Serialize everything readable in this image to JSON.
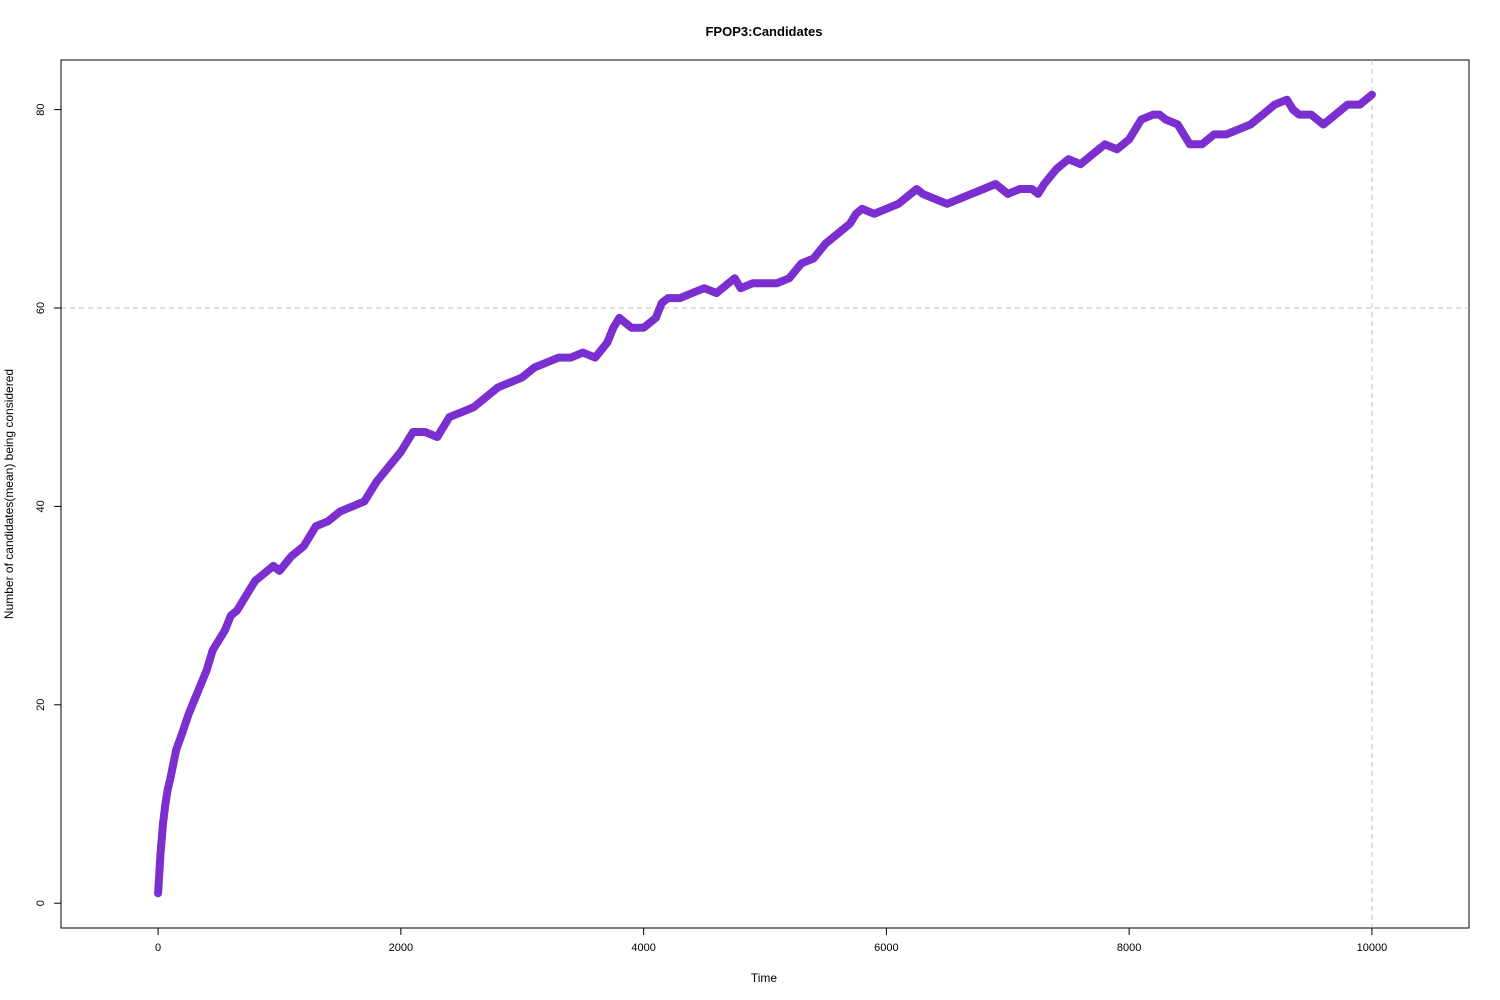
{
  "chart_data": {
    "type": "scatter",
    "title": "FPOP3:Candidates",
    "xlabel": "Time",
    "ylabel": "Number of candidates(mean) being considered",
    "xlim": [
      -800,
      10800
    ],
    "ylim": [
      -2.5,
      85
    ],
    "x_ticks": [
      0,
      2000,
      4000,
      6000,
      8000,
      10000
    ],
    "y_ticks": [
      0,
      20,
      40,
      60,
      80
    ],
    "ref_lines": {
      "h": 60,
      "v": 10000
    },
    "grid": false,
    "colors": {
      "series": "#7b2fd0",
      "ref_line": "#c0c0c0",
      "axis": "#000000"
    },
    "series": [
      {
        "x": [
          0,
          10,
          20,
          40,
          60,
          80,
          100,
          150,
          200,
          250,
          300,
          350,
          400,
          450,
          500,
          550,
          600,
          650,
          700,
          750,
          800,
          850,
          900,
          950,
          1000,
          1100,
          1200,
          1300,
          1400,
          1500,
          1600,
          1700,
          1800,
          1900,
          2000,
          2100,
          2200,
          2300,
          2400,
          2500,
          2600,
          2700,
          2800,
          2900,
          3000,
          3100,
          3200,
          3300,
          3400,
          3500,
          3600,
          3700,
          3750,
          3800,
          3900,
          4000,
          4100,
          4150,
          4200,
          4300,
          4400,
          4500,
          4600,
          4700,
          4750,
          4800,
          4900,
          5000,
          5100,
          5200,
          5300,
          5400,
          5500,
          5600,
          5700,
          5750,
          5800,
          5900,
          6000,
          6100,
          6200,
          6250,
          6300,
          6400,
          6500,
          6600,
          6700,
          6800,
          6900,
          7000,
          7100,
          7200,
          7250,
          7300,
          7400,
          7500,
          7600,
          7700,
          7800,
          7900,
          8000,
          8100,
          8200,
          8250,
          8300,
          8400,
          8500,
          8600,
          8700,
          8800,
          8900,
          9000,
          9100,
          9200,
          9300,
          9350,
          9400,
          9500,
          9600,
          9700,
          9800,
          9900,
          10000
        ],
        "y": [
          1.0,
          3.0,
          5.0,
          8.0,
          10.0,
          11.5,
          12.5,
          15.5,
          17.2,
          19.0,
          20.5,
          22.0,
          23.5,
          25.5,
          26.5,
          27.5,
          29.0,
          29.5,
          30.5,
          31.5,
          32.5,
          33.0,
          33.5,
          34.0,
          33.5,
          35.0,
          36.0,
          38.0,
          38.5,
          39.5,
          40.0,
          40.5,
          42.5,
          44.0,
          45.5,
          47.5,
          47.5,
          47.0,
          49.0,
          49.5,
          50.0,
          51.0,
          52.0,
          52.5,
          53.0,
          54.0,
          54.5,
          55.0,
          55.0,
          55.5,
          55.0,
          56.5,
          58.0,
          59.0,
          58.0,
          58.0,
          59.0,
          60.5,
          61.0,
          61.0,
          61.5,
          62.0,
          61.5,
          62.5,
          63.0,
          62.0,
          62.5,
          62.5,
          62.5,
          63.0,
          64.5,
          65.0,
          66.5,
          67.5,
          68.5,
          69.5,
          70.0,
          69.5,
          70.0,
          70.5,
          71.5,
          72.0,
          71.5,
          71.0,
          70.5,
          71.0,
          71.5,
          72.0,
          72.5,
          71.5,
          72.0,
          72.0,
          71.5,
          72.5,
          74.0,
          75.0,
          74.5,
          75.5,
          76.5,
          76.0,
          77.0,
          79.0,
          79.5,
          79.5,
          79.0,
          78.5,
          76.5,
          76.5,
          77.5,
          77.5,
          78.0,
          78.5,
          79.5,
          80.5,
          81.0,
          80.0,
          79.5,
          79.5,
          78.5,
          79.5,
          80.5,
          80.5,
          81.5
        ]
      }
    ]
  }
}
